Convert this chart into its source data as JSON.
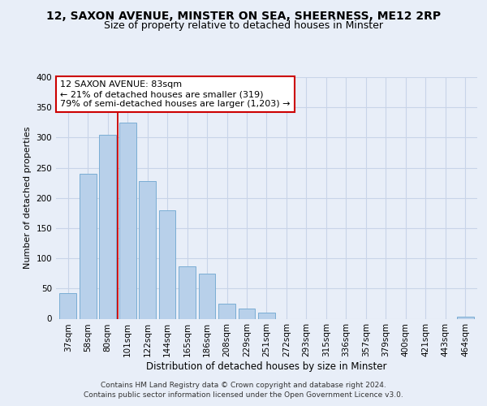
{
  "title": "12, SAXON AVENUE, MINSTER ON SEA, SHEERNESS, ME12 2RP",
  "subtitle": "Size of property relative to detached houses in Minster",
  "xlabel": "Distribution of detached houses by size in Minster",
  "ylabel": "Number of detached properties",
  "bar_labels": [
    "37sqm",
    "58sqm",
    "80sqm",
    "101sqm",
    "122sqm",
    "144sqm",
    "165sqm",
    "186sqm",
    "208sqm",
    "229sqm",
    "251sqm",
    "272sqm",
    "293sqm",
    "315sqm",
    "336sqm",
    "357sqm",
    "379sqm",
    "400sqm",
    "421sqm",
    "443sqm",
    "464sqm"
  ],
  "bar_values": [
    42,
    240,
    305,
    325,
    228,
    180,
    87,
    75,
    25,
    17,
    10,
    0,
    0,
    0,
    0,
    0,
    0,
    0,
    0,
    0,
    3
  ],
  "bar_color": "#b8d0ea",
  "bar_edge_color": "#7aadd4",
  "highlight_color": "#cc0000",
  "annotation_line1": "12 SAXON AVENUE: 83sqm",
  "annotation_line2": "← 21% of detached houses are smaller (319)",
  "annotation_line3": "79% of semi-detached houses are larger (1,203) →",
  "annotation_box_color": "#ffffff",
  "annotation_box_edge": "#cc0000",
  "ylim": [
    0,
    400
  ],
  "yticks": [
    0,
    50,
    100,
    150,
    200,
    250,
    300,
    350,
    400
  ],
  "bg_color": "#e8eef8",
  "plot_bg_color": "#e8eef8",
  "grid_color": "#c8d4e8",
  "footer_line1": "Contains HM Land Registry data © Crown copyright and database right 2024.",
  "footer_line2": "Contains public sector information licensed under the Open Government Licence v3.0.",
  "title_fontsize": 10,
  "subtitle_fontsize": 9,
  "xlabel_fontsize": 8.5,
  "ylabel_fontsize": 8,
  "tick_fontsize": 7.5,
  "annotation_fontsize": 8,
  "footer_fontsize": 6.5,
  "red_line_x": 2.5
}
